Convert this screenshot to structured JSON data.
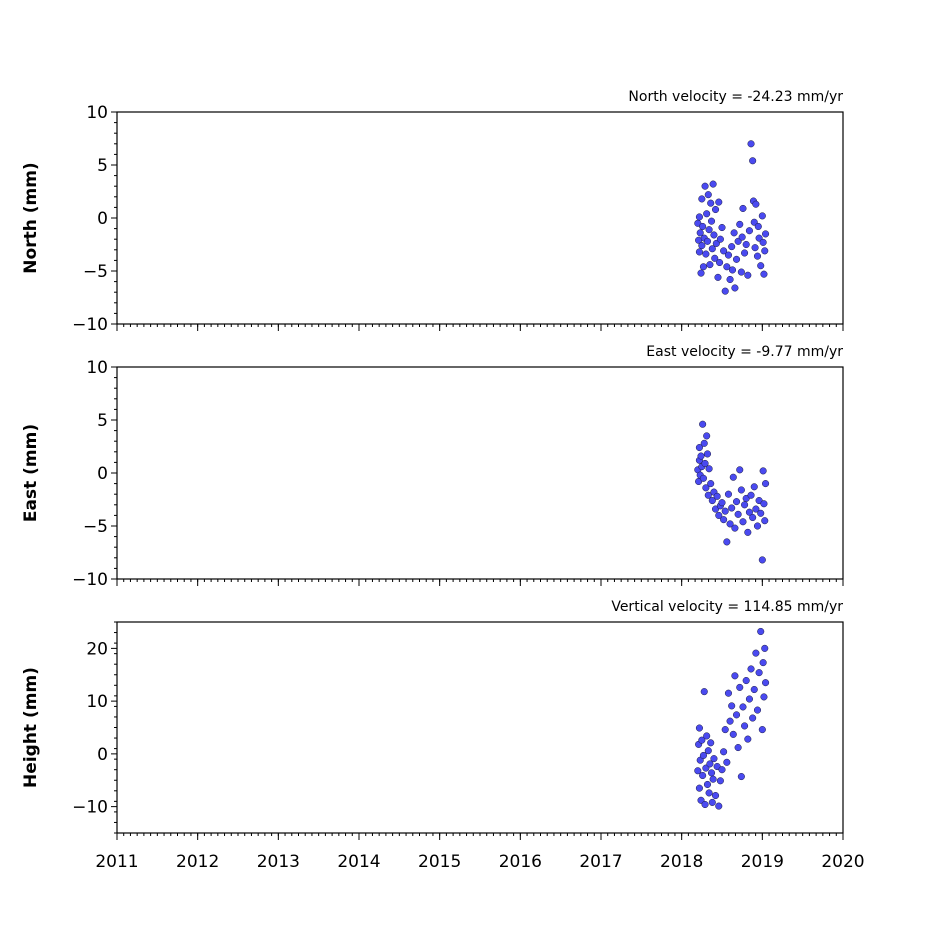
{
  "chart_data": [
    {
      "type": "scatter",
      "title": "North velocity = -24.23 mm/yr",
      "ylabel": "North (mm)",
      "xlim": [
        2011,
        2020
      ],
      "ylim": [
        -10,
        10
      ],
      "yticks": [
        10,
        5,
        0,
        -5,
        -10
      ],
      "ytick_labels": [
        "10",
        "5",
        "0",
        "−5",
        "−10"
      ],
      "color": "#4a4af0",
      "series": [
        {
          "x": [
            2018.2,
            2018.21,
            2018.22,
            2018.22,
            2018.23,
            2018.24,
            2018.25,
            2018.25,
            2018.26,
            2018.27,
            2018.28,
            2018.29,
            2018.3,
            2018.31,
            2018.32,
            2018.33,
            2018.34,
            2018.35,
            2018.36,
            2018.37,
            2018.38,
            2018.39,
            2018.4,
            2018.41,
            2018.42,
            2018.43,
            2018.45,
            2018.46,
            2018.47,
            2018.48,
            2018.5,
            2018.52,
            2018.54,
            2018.56,
            2018.58,
            2018.6,
            2018.62,
            2018.63,
            2018.65,
            2018.66,
            2018.68,
            2018.7,
            2018.72,
            2018.74,
            2018.75,
            2018.76,
            2018.78,
            2018.8,
            2018.82,
            2018.84,
            2018.86,
            2018.88,
            2018.89,
            2018.9,
            2018.91,
            2018.92,
            2018.94,
            2018.95,
            2018.96,
            2018.98,
            2019.0,
            2019.01,
            2019.02,
            2019.03,
            2019.04
          ],
          "y": [
            -0.5,
            -2.1,
            -3.2,
            0.1,
            -1.4,
            -5.2,
            1.8,
            -2.6,
            -0.8,
            -4.6,
            -1.9,
            3.0,
            -3.4,
            0.4,
            -2.2,
            2.2,
            -1.1,
            -4.4,
            1.4,
            -0.3,
            -2.9,
            3.2,
            -1.6,
            -3.8,
            0.8,
            -2.4,
            -5.6,
            1.5,
            -4.2,
            -2.0,
            -0.9,
            -3.1,
            -6.9,
            -4.6,
            -3.5,
            -5.8,
            -2.7,
            -4.9,
            -1.4,
            -6.6,
            -3.9,
            -2.2,
            -0.6,
            -5.1,
            -1.8,
            0.9,
            -3.3,
            -2.5,
            -5.4,
            -1.2,
            7.0,
            5.4,
            1.6,
            -0.4,
            -2.8,
            1.3,
            -3.6,
            -0.8,
            -1.9,
            -4.5,
            0.2,
            -2.3,
            -5.3,
            -3.1,
            -1.5
          ]
        }
      ]
    },
    {
      "type": "scatter",
      "title": "East velocity = -9.77 mm/yr",
      "ylabel": "East (mm)",
      "xlim": [
        2011,
        2020
      ],
      "ylim": [
        -10,
        10
      ],
      "yticks": [
        10,
        5,
        0,
        -5,
        -10
      ],
      "ytick_labels": [
        "10",
        "5",
        "0",
        "−5",
        "−10"
      ],
      "color": "#4a4af0",
      "series": [
        {
          "x": [
            2018.2,
            2018.21,
            2018.22,
            2018.22,
            2018.23,
            2018.24,
            2018.25,
            2018.26,
            2018.27,
            2018.28,
            2018.29,
            2018.3,
            2018.31,
            2018.32,
            2018.33,
            2018.34,
            2018.36,
            2018.38,
            2018.4,
            2018.42,
            2018.44,
            2018.46,
            2018.48,
            2018.5,
            2018.52,
            2018.54,
            2018.56,
            2018.58,
            2018.6,
            2018.62,
            2018.64,
            2018.66,
            2018.68,
            2018.7,
            2018.72,
            2018.74,
            2018.76,
            2018.78,
            2018.8,
            2018.82,
            2018.84,
            2018.86,
            2018.88,
            2018.9,
            2018.92,
            2018.94,
            2018.96,
            2018.98,
            2019.0,
            2019.01,
            2019.02,
            2019.03,
            2019.04
          ],
          "y": [
            0.3,
            -0.8,
            1.2,
            2.4,
            -0.2,
            1.6,
            0.6,
            4.6,
            -0.5,
            2.8,
            0.9,
            -1.4,
            3.5,
            1.8,
            -2.1,
            0.4,
            -1.0,
            -2.6,
            -1.8,
            -3.4,
            -2.2,
            -4.0,
            -3.1,
            -2.8,
            -4.4,
            -3.6,
            -6.5,
            -2.0,
            -4.8,
            -3.3,
            -0.4,
            -5.2,
            -2.7,
            -3.9,
            0.3,
            -1.6,
            -4.6,
            -3.0,
            -2.4,
            -5.6,
            -3.7,
            -2.1,
            -4.2,
            -1.3,
            -3.4,
            -5.0,
            -2.6,
            -3.8,
            -8.2,
            0.2,
            -2.9,
            -4.5,
            -1.0
          ]
        }
      ]
    },
    {
      "type": "scatter",
      "title": "Vertical velocity = 114.85 mm/yr",
      "ylabel": "Height (mm)",
      "xlim": [
        2011,
        2020
      ],
      "ylim": [
        -15,
        25
      ],
      "yticks": [
        20,
        10,
        0,
        -10
      ],
      "ytick_labels": [
        "20",
        "10",
        "0",
        "−10"
      ],
      "color": "#4a4af0",
      "series": [
        {
          "x": [
            2018.2,
            2018.21,
            2018.22,
            2018.22,
            2018.23,
            2018.24,
            2018.25,
            2018.26,
            2018.27,
            2018.28,
            2018.29,
            2018.3,
            2018.31,
            2018.32,
            2018.33,
            2018.34,
            2018.35,
            2018.36,
            2018.37,
            2018.38,
            2018.39,
            2018.4,
            2018.42,
            2018.44,
            2018.46,
            2018.48,
            2018.5,
            2018.52,
            2018.54,
            2018.56,
            2018.58,
            2018.6,
            2018.62,
            2018.64,
            2018.66,
            2018.68,
            2018.7,
            2018.72,
            2018.74,
            2018.76,
            2018.78,
            2018.8,
            2018.82,
            2018.84,
            2018.86,
            2018.88,
            2018.9,
            2018.92,
            2018.94,
            2018.96,
            2018.98,
            2019.0,
            2019.01,
            2019.02,
            2019.03,
            2019.04
          ],
          "y": [
            -3.2,
            1.8,
            -6.5,
            4.9,
            -1.2,
            -8.8,
            2.6,
            -4.1,
            -0.3,
            11.8,
            -9.6,
            -2.7,
            3.4,
            -5.8,
            0.6,
            -7.4,
            -1.9,
            2.1,
            -3.6,
            -9.2,
            -4.8,
            -0.9,
            -7.9,
            -2.4,
            -9.9,
            -5.1,
            -3.0,
            0.4,
            4.6,
            -1.6,
            11.5,
            6.2,
            9.1,
            3.7,
            14.8,
            7.4,
            1.2,
            12.6,
            -4.3,
            8.9,
            5.3,
            13.9,
            2.8,
            10.4,
            16.1,
            6.8,
            12.2,
            19.1,
            8.3,
            15.4,
            23.2,
            4.6,
            17.3,
            10.8,
            20.0,
            13.5
          ]
        }
      ]
    }
  ],
  "x_axis": {
    "ticks": [
      2011,
      2012,
      2013,
      2014,
      2015,
      2016,
      2017,
      2018,
      2019,
      2020
    ],
    "tick_labels": [
      "2011",
      "2012",
      "2013",
      "2014",
      "2015",
      "2016",
      "2017",
      "2018",
      "2019",
      "2020"
    ]
  }
}
